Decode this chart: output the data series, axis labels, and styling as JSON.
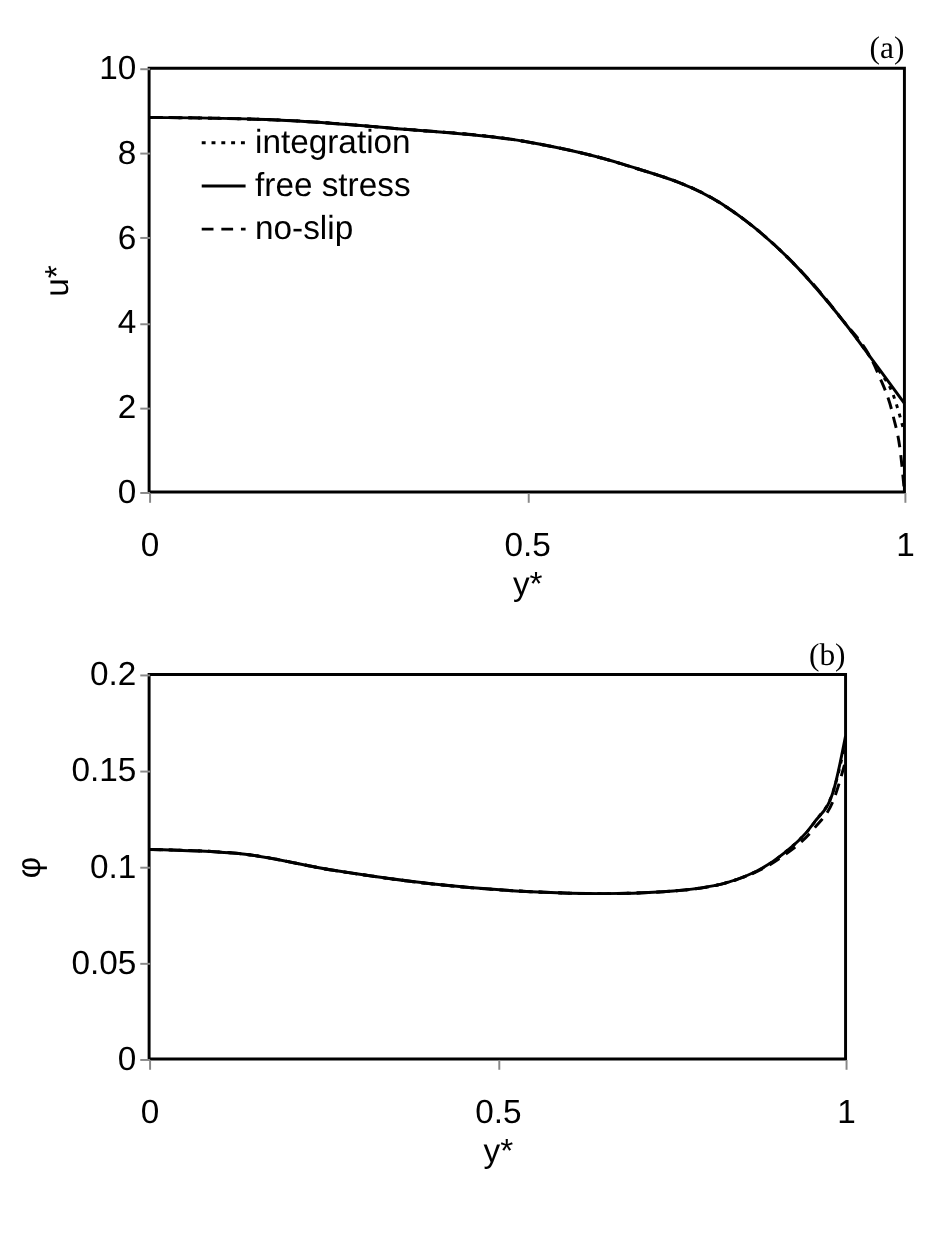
{
  "chart_data": [
    {
      "type": "line",
      "xlabel": "y*",
      "ylabel": "u*",
      "annotations": [
        "(a)"
      ],
      "xlim": [
        0,
        1
      ],
      "ylim": [
        0,
        10
      ],
      "xticks": [
        0,
        0.5,
        1
      ],
      "yticks": [
        0,
        2,
        4,
        6,
        8,
        10
      ],
      "grid": false,
      "legend": "top left",
      "marker": "none",
      "series": [
        {
          "name": "integration",
          "color": "#000000",
          "line_style": "dotted",
          "x": [
            0,
            0.169,
            0.325,
            0.498,
            0.628,
            0.758,
            0.844,
            0.913,
            0.965,
            0.985,
            1
          ],
          "values": [
            8.84,
            8.78,
            8.58,
            8.27,
            7.73,
            6.8,
            5.56,
            4.17,
            2.9,
            2.3,
            1.4
          ]
        },
        {
          "name": "free stress",
          "color": "#000000",
          "line_style": "solid",
          "x": [
            0,
            0.169,
            0.325,
            0.498,
            0.628,
            0.758,
            0.844,
            0.913,
            0.965,
            1
          ],
          "values": [
            8.84,
            8.78,
            8.58,
            8.27,
            7.73,
            6.8,
            5.56,
            4.17,
            2.94,
            2.09
          ]
        },
        {
          "name": "no-slip",
          "color": "#000000",
          "line_style": "dashed",
          "x": [
            0,
            0.169,
            0.325,
            0.498,
            0.628,
            0.758,
            0.844,
            0.913,
            0.965,
            0.985,
            0.995,
            1
          ],
          "values": [
            8.84,
            8.78,
            8.58,
            8.27,
            7.73,
            6.8,
            5.56,
            4.17,
            2.8,
            1.8,
            0.9,
            0
          ]
        }
      ]
    },
    {
      "type": "line",
      "xlabel": "y*",
      "ylabel": "φ",
      "annotations": [
        "(b)"
      ],
      "xlim": [
        0,
        1
      ],
      "ylim": [
        0,
        0.2
      ],
      "xticks": [
        0,
        0.5,
        1
      ],
      "yticks": [
        0,
        0.05,
        0.1,
        0.15,
        0.2
      ],
      "grid": false,
      "legend": false,
      "marker": "none",
      "series": [
        {
          "color": "#000000",
          "line_style": "dotted",
          "x": [
            0,
            0.125,
            0.267,
            0.408,
            0.549,
            0.653,
            0.738,
            0.832,
            0.908,
            0.955,
            0.983,
            1
          ],
          "values": [
            0.109,
            0.107,
            0.098,
            0.091,
            0.087,
            0.086,
            0.087,
            0.092,
            0.106,
            0.123,
            0.14,
            0.165
          ]
        },
        {
          "color": "#000000",
          "line_style": "solid",
          "x": [
            0,
            0.125,
            0.267,
            0.408,
            0.549,
            0.653,
            0.738,
            0.832,
            0.908,
            0.955,
            0.983,
            1
          ],
          "values": [
            0.109,
            0.107,
            0.098,
            0.091,
            0.087,
            0.086,
            0.087,
            0.092,
            0.106,
            0.123,
            0.14,
            0.168
          ]
        },
        {
          "color": "#000000",
          "line_style": "dashed",
          "x": [
            0,
            0.125,
            0.267,
            0.408,
            0.549,
            0.653,
            0.738,
            0.832,
            0.908,
            0.955,
            0.983,
            1
          ],
          "values": [
            0.109,
            0.107,
            0.098,
            0.091,
            0.087,
            0.086,
            0.087,
            0.092,
            0.105,
            0.12,
            0.135,
            0.155
          ]
        }
      ]
    }
  ]
}
